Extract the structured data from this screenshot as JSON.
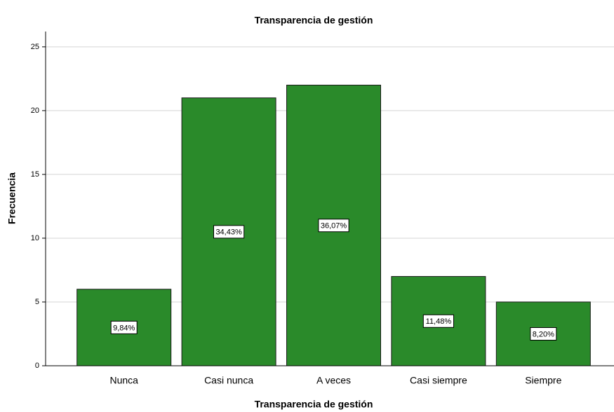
{
  "chart_data": {
    "type": "bar",
    "title": "Transparencia de gestión",
    "x_label": "Transparencia de gestión",
    "y_label": "Frecuencia",
    "categories": [
      "Nunca",
      "Casi nunca",
      "A veces",
      "Casi siempre",
      "Siempre"
    ],
    "values": [
      6,
      21,
      22,
      7,
      5
    ],
    "bar_labels": [
      "9,84%",
      "34,43%",
      "36,07%",
      "11,48%",
      "8,20%"
    ],
    "color": "#2a8a2a",
    "ylim": [
      0,
      26.2
    ],
    "yticks": [
      0,
      5,
      10,
      15,
      20,
      25
    ],
    "grid": true
  }
}
